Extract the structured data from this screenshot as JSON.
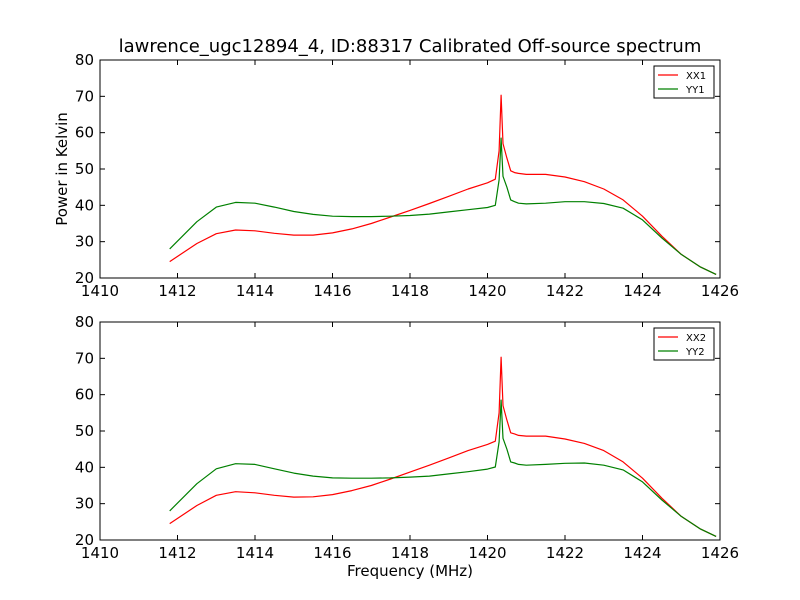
{
  "figure": {
    "title": "lawrence_ugc12894_4, ID:88317 Calibrated Off-source spectrum",
    "xlabel": "Frequency (MHz)",
    "ylabel_top": "Power in Kelvin"
  },
  "colors": {
    "xx": "#ff0000",
    "yy": "#008000",
    "axes": "#000000",
    "background": "#ffffff"
  },
  "chart_data": [
    {
      "type": "line",
      "title": "lawrence_ugc12894_4, ID:88317 Calibrated Off-source spectrum",
      "xlabel": "",
      "ylabel": "Power in Kelvin",
      "xlim": [
        1410,
        1426
      ],
      "ylim": [
        20,
        80
      ],
      "xticks": [
        "1410",
        "1412",
        "1414",
        "1416",
        "1418",
        "1420",
        "1422",
        "1424",
        "1426"
      ],
      "yticks": [
        "20",
        "30",
        "40",
        "50",
        "60",
        "70",
        "80"
      ],
      "legend_position": "top-right",
      "series": [
        {
          "name": "XX1",
          "color": "#ff0000",
          "x": [
            1411.8,
            1412.5,
            1413.0,
            1413.5,
            1414.0,
            1414.5,
            1415.0,
            1415.5,
            1416.0,
            1416.5,
            1417.0,
            1417.5,
            1418.0,
            1418.5,
            1419.0,
            1419.5,
            1420.0,
            1420.2,
            1420.3,
            1420.35,
            1420.4,
            1420.5,
            1420.6,
            1420.7,
            1420.8,
            1421.0,
            1421.5,
            1422.0,
            1422.5,
            1423.0,
            1423.5,
            1424.0,
            1424.5,
            1425.0,
            1425.5,
            1425.9
          ],
          "y": [
            24.5,
            29.5,
            32.2,
            33.2,
            33.0,
            32.3,
            31.8,
            31.8,
            32.4,
            33.5,
            35.0,
            36.8,
            38.6,
            40.5,
            42.5,
            44.5,
            46.2,
            47.2,
            55.0,
            70.3,
            57.0,
            53.0,
            49.5,
            49.0,
            48.8,
            48.5,
            48.5,
            47.8,
            46.5,
            44.5,
            41.5,
            37.0,
            31.5,
            26.5,
            23.0,
            21.0
          ]
        },
        {
          "name": "YY1",
          "color": "#008000",
          "x": [
            1411.8,
            1412.5,
            1413.0,
            1413.5,
            1414.0,
            1414.5,
            1415.0,
            1415.5,
            1416.0,
            1416.5,
            1417.0,
            1417.5,
            1418.0,
            1418.5,
            1419.0,
            1419.5,
            1420.0,
            1420.2,
            1420.3,
            1420.35,
            1420.4,
            1420.5,
            1420.6,
            1420.7,
            1420.8,
            1421.0,
            1421.5,
            1422.0,
            1422.5,
            1423.0,
            1423.5,
            1424.0,
            1424.5,
            1425.0,
            1425.5,
            1425.9
          ],
          "y": [
            28.0,
            35.5,
            39.5,
            40.8,
            40.6,
            39.5,
            38.3,
            37.5,
            37.0,
            36.9,
            36.9,
            37.0,
            37.2,
            37.6,
            38.2,
            38.8,
            39.4,
            40.0,
            47.0,
            58.5,
            48.0,
            45.0,
            41.5,
            41.0,
            40.6,
            40.4,
            40.6,
            41.0,
            41.0,
            40.5,
            39.2,
            36.0,
            31.0,
            26.5,
            23.0,
            21.0
          ]
        }
      ]
    },
    {
      "type": "line",
      "title": "",
      "xlabel": "Frequency (MHz)",
      "ylabel": "",
      "xlim": [
        1410,
        1426
      ],
      "ylim": [
        20,
        80
      ],
      "xticks": [
        "1410",
        "1412",
        "1414",
        "1416",
        "1418",
        "1420",
        "1422",
        "1424",
        "1426"
      ],
      "yticks": [
        "20",
        "30",
        "40",
        "50",
        "60",
        "70",
        "80"
      ],
      "legend_position": "top-right",
      "series": [
        {
          "name": "XX2",
          "color": "#ff0000",
          "x": [
            1411.8,
            1412.5,
            1413.0,
            1413.5,
            1414.0,
            1414.5,
            1415.0,
            1415.5,
            1416.0,
            1416.5,
            1417.0,
            1417.5,
            1418.0,
            1418.5,
            1419.0,
            1419.5,
            1420.0,
            1420.2,
            1420.3,
            1420.35,
            1420.4,
            1420.5,
            1420.6,
            1420.7,
            1420.8,
            1421.0,
            1421.5,
            1422.0,
            1422.5,
            1423.0,
            1423.5,
            1424.0,
            1424.5,
            1425.0,
            1425.5,
            1425.9
          ],
          "y": [
            24.5,
            29.5,
            32.3,
            33.3,
            33.0,
            32.3,
            31.8,
            31.9,
            32.5,
            33.6,
            35.0,
            36.8,
            38.7,
            40.6,
            42.6,
            44.6,
            46.3,
            47.2,
            55.0,
            70.3,
            57.0,
            53.0,
            49.5,
            49.2,
            48.8,
            48.6,
            48.6,
            47.8,
            46.6,
            44.6,
            41.5,
            37.0,
            31.5,
            26.5,
            23.0,
            21.0
          ]
        },
        {
          "name": "YY2",
          "color": "#008000",
          "x": [
            1411.8,
            1412.5,
            1413.0,
            1413.5,
            1414.0,
            1414.5,
            1415.0,
            1415.5,
            1416.0,
            1416.5,
            1417.0,
            1417.5,
            1418.0,
            1418.5,
            1419.0,
            1419.5,
            1420.0,
            1420.2,
            1420.3,
            1420.35,
            1420.4,
            1420.5,
            1420.6,
            1420.7,
            1420.8,
            1421.0,
            1421.5,
            1422.0,
            1422.5,
            1423.0,
            1423.5,
            1424.0,
            1424.5,
            1425.0,
            1425.5,
            1425.9
          ],
          "y": [
            28.0,
            35.5,
            39.6,
            41.0,
            40.8,
            39.6,
            38.4,
            37.6,
            37.1,
            37.0,
            37.0,
            37.1,
            37.3,
            37.6,
            38.2,
            38.8,
            39.5,
            40.1,
            47.0,
            58.5,
            48.0,
            45.0,
            41.5,
            41.2,
            40.8,
            40.6,
            40.8,
            41.1,
            41.2,
            40.6,
            39.3,
            36.0,
            31.0,
            26.5,
            23.0,
            21.0
          ]
        }
      ]
    }
  ]
}
